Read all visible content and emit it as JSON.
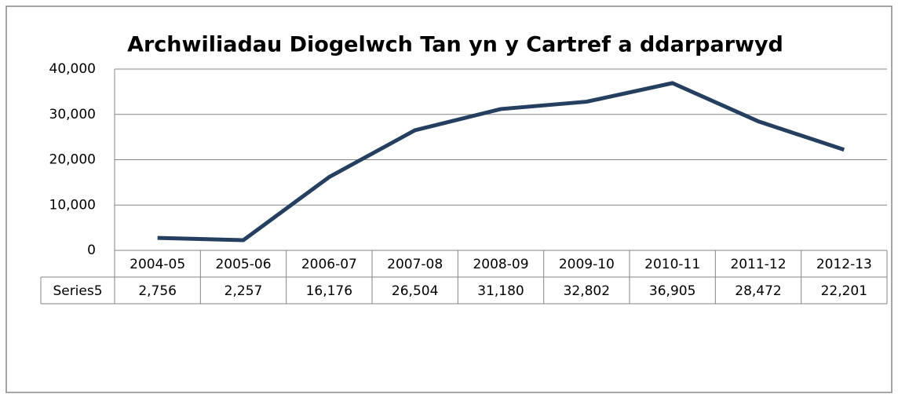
{
  "chart_data": {
    "type": "line",
    "title": "Archwiliadau Diogelwch Tan yn y Cartref a ddarparwyd",
    "categories": [
      "2004-05",
      "2005-06",
      "2006-07",
      "2007-08",
      "2008-09",
      "2009-10",
      "2010-11",
      "2011-12",
      "2012-13"
    ],
    "series": [
      {
        "name": "Series5",
        "color": "#243f60",
        "values": [
          2756,
          2257,
          16176,
          26504,
          31180,
          32802,
          36905,
          28472,
          22201
        ],
        "value_labels": [
          "2,756",
          "2,257",
          "16,176",
          "26,504",
          "31,180",
          "32,802",
          "36,905",
          "28,472",
          "22,201"
        ]
      }
    ],
    "ylim": [
      0,
      40000
    ],
    "yticks": [
      0,
      {
        "value": 10000,
        "label": "10,000"
      },
      {
        "value": 20000,
        "label": "20,000"
      },
      {
        "value": 30000,
        "label": "30,000"
      },
      {
        "value": 40000,
        "label": "40,000"
      }
    ],
    "grid": true
  }
}
